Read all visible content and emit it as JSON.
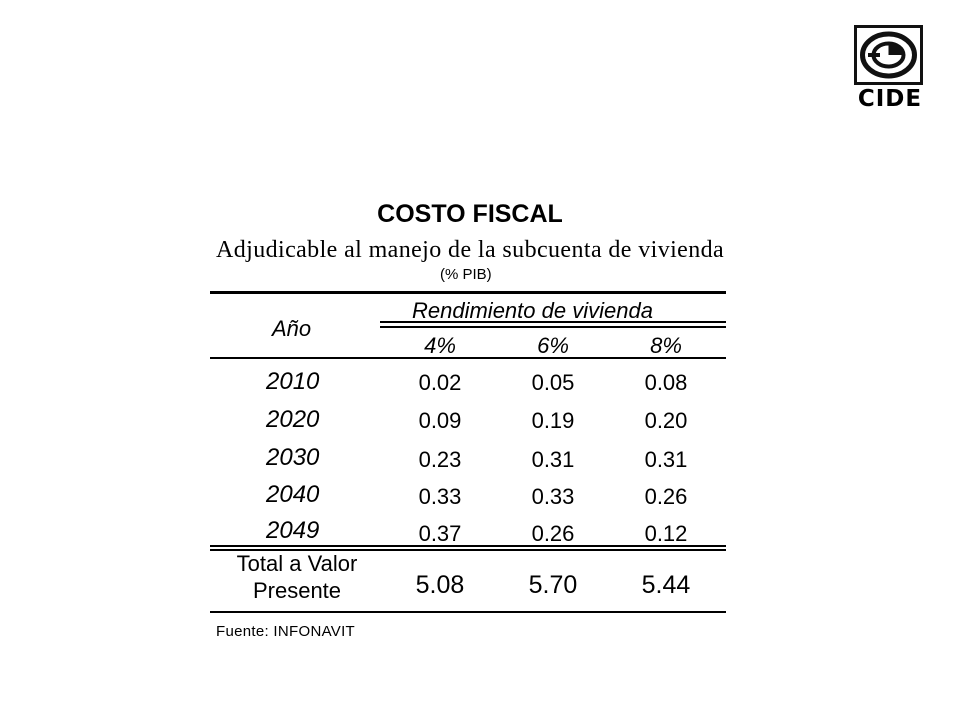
{
  "logo": {
    "text": "CIDE"
  },
  "table": {
    "title": "COSTO FISCAL",
    "subtitle": "Adjudicable al manejo de la subcuenta de vivienda",
    "unit": "(% PIB)",
    "header": {
      "year_label": "Año",
      "group_label": "Rendimiento de vivienda",
      "columns": [
        "4%",
        "6%",
        "8%"
      ]
    },
    "rows": [
      {
        "year": "2010",
        "values": [
          "0.02",
          "0.05",
          "0.08"
        ]
      },
      {
        "year": "2020",
        "values": [
          "0.09",
          "0.19",
          "0.20"
        ]
      },
      {
        "year": "2030",
        "values": [
          "0.23",
          "0.31",
          "0.31"
        ]
      },
      {
        "year": "2040",
        "values": [
          "0.33",
          "0.33",
          "0.26"
        ]
      },
      {
        "year": "2049",
        "values": [
          "0.37",
          "0.26",
          "0.12"
        ]
      }
    ],
    "total": {
      "label": "Total a Valor Presente",
      "values": [
        "5.08",
        "5.70",
        "5.44"
      ]
    },
    "source": "Fuente: INFONAVIT"
  }
}
